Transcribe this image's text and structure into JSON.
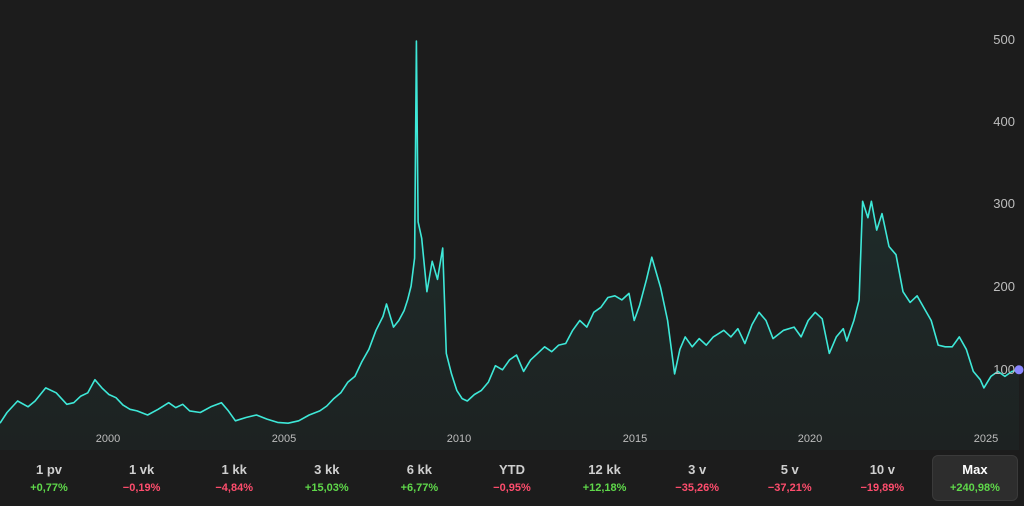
{
  "chart_data": {
    "type": "area",
    "title": "",
    "xlabel": "",
    "ylabel": "",
    "ylim": [
      0,
      520
    ],
    "xlim": [
      1997.0,
      2026.0
    ],
    "y_ticks": [
      "100",
      "200",
      "300",
      "400",
      "500"
    ],
    "x_ticks": [
      "2000",
      "2005",
      "2010",
      "2015",
      "2020",
      "2025"
    ],
    "grid": false,
    "line_color": "#3ee8d8",
    "marker_color": "#8a86ff",
    "series": [
      {
        "values": [
          [
            1997.0,
            35
          ],
          [
            1997.2,
            48
          ],
          [
            1997.5,
            62
          ],
          [
            1997.8,
            55
          ],
          [
            1998.0,
            62
          ],
          [
            1998.3,
            78
          ],
          [
            1998.6,
            72
          ],
          [
            1998.9,
            58
          ],
          [
            1999.1,
            60
          ],
          [
            1999.3,
            68
          ],
          [
            1999.5,
            72
          ],
          [
            1999.7,
            88
          ],
          [
            1999.9,
            78
          ],
          [
            2000.1,
            70
          ],
          [
            2000.3,
            66
          ],
          [
            2000.5,
            57
          ],
          [
            2000.7,
            52
          ],
          [
            2000.9,
            50
          ],
          [
            2001.2,
            45
          ],
          [
            2001.5,
            52
          ],
          [
            2001.8,
            60
          ],
          [
            2002.0,
            54
          ],
          [
            2002.2,
            58
          ],
          [
            2002.4,
            50
          ],
          [
            2002.7,
            48
          ],
          [
            2003.0,
            55
          ],
          [
            2003.3,
            60
          ],
          [
            2003.5,
            50
          ],
          [
            2003.7,
            38
          ],
          [
            2004.0,
            42
          ],
          [
            2004.3,
            45
          ],
          [
            2004.6,
            40
          ],
          [
            2004.9,
            36
          ],
          [
            2005.2,
            35
          ],
          [
            2005.5,
            38
          ],
          [
            2005.8,
            45
          ],
          [
            2006.1,
            50
          ],
          [
            2006.3,
            56
          ],
          [
            2006.5,
            65
          ],
          [
            2006.7,
            72
          ],
          [
            2006.9,
            85
          ],
          [
            2007.1,
            92
          ],
          [
            2007.3,
            110
          ],
          [
            2007.5,
            125
          ],
          [
            2007.7,
            148
          ],
          [
            2007.9,
            165
          ],
          [
            2008.0,
            180
          ],
          [
            2008.2,
            152
          ],
          [
            2008.35,
            160
          ],
          [
            2008.5,
            172
          ],
          [
            2008.6,
            185
          ],
          [
            2008.7,
            202
          ],
          [
            2008.8,
            236
          ],
          [
            2008.85,
            500
          ],
          [
            2008.9,
            280
          ],
          [
            2009.0,
            260
          ],
          [
            2009.15,
            195
          ],
          [
            2009.3,
            232
          ],
          [
            2009.45,
            210
          ],
          [
            2009.6,
            248
          ],
          [
            2009.7,
            120
          ],
          [
            2009.85,
            95
          ],
          [
            2010.0,
            75
          ],
          [
            2010.15,
            65
          ],
          [
            2010.3,
            62
          ],
          [
            2010.5,
            70
          ],
          [
            2010.7,
            75
          ],
          [
            2010.9,
            85
          ],
          [
            2011.1,
            105
          ],
          [
            2011.3,
            100
          ],
          [
            2011.5,
            112
          ],
          [
            2011.7,
            118
          ],
          [
            2011.9,
            98
          ],
          [
            2012.1,
            112
          ],
          [
            2012.3,
            120
          ],
          [
            2012.5,
            128
          ],
          [
            2012.7,
            122
          ],
          [
            2012.9,
            130
          ],
          [
            2013.1,
            132
          ],
          [
            2013.3,
            148
          ],
          [
            2013.5,
            160
          ],
          [
            2013.7,
            152
          ],
          [
            2013.9,
            170
          ],
          [
            2014.1,
            176
          ],
          [
            2014.3,
            188
          ],
          [
            2014.5,
            190
          ],
          [
            2014.7,
            185
          ],
          [
            2014.9,
            193
          ],
          [
            2015.05,
            160
          ],
          [
            2015.2,
            178
          ],
          [
            2015.4,
            210
          ],
          [
            2015.55,
            237
          ],
          [
            2015.8,
            200
          ],
          [
            2016.0,
            160
          ],
          [
            2016.2,
            95
          ],
          [
            2016.35,
            125
          ],
          [
            2016.5,
            140
          ],
          [
            2016.7,
            128
          ],
          [
            2016.9,
            138
          ],
          [
            2017.1,
            130
          ],
          [
            2017.3,
            140
          ],
          [
            2017.6,
            148
          ],
          [
            2017.8,
            140
          ],
          [
            2018.0,
            150
          ],
          [
            2018.2,
            132
          ],
          [
            2018.4,
            155
          ],
          [
            2018.6,
            170
          ],
          [
            2018.8,
            160
          ],
          [
            2019.0,
            138
          ],
          [
            2019.3,
            148
          ],
          [
            2019.6,
            152
          ],
          [
            2019.8,
            140
          ],
          [
            2020.0,
            160
          ],
          [
            2020.2,
            170
          ],
          [
            2020.4,
            162
          ],
          [
            2020.6,
            120
          ],
          [
            2020.8,
            140
          ],
          [
            2021.0,
            150
          ],
          [
            2021.1,
            135
          ],
          [
            2021.3,
            160
          ],
          [
            2021.45,
            185
          ],
          [
            2021.55,
            305
          ],
          [
            2021.7,
            285
          ],
          [
            2021.8,
            305
          ],
          [
            2021.95,
            270
          ],
          [
            2022.1,
            290
          ],
          [
            2022.3,
            250
          ],
          [
            2022.5,
            240
          ],
          [
            2022.7,
            195
          ],
          [
            2022.9,
            182
          ],
          [
            2023.1,
            190
          ],
          [
            2023.3,
            175
          ],
          [
            2023.5,
            160
          ],
          [
            2023.7,
            130
          ],
          [
            2023.9,
            128
          ],
          [
            2024.1,
            128
          ],
          [
            2024.3,
            140
          ],
          [
            2024.5,
            125
          ],
          [
            2024.7,
            98
          ],
          [
            2024.9,
            88
          ],
          [
            2025.0,
            78
          ],
          [
            2025.2,
            92
          ],
          [
            2025.4,
            98
          ],
          [
            2025.6,
            92
          ],
          [
            2025.8,
            98
          ],
          [
            2026.0,
            100
          ]
        ]
      }
    ]
  },
  "ranges": [
    {
      "label": "1 pv",
      "change": "+0,77%",
      "positive": true,
      "active": false
    },
    {
      "label": "1 vk",
      "change": "−0,19%",
      "positive": false,
      "active": false
    },
    {
      "label": "1 kk",
      "change": "−4,84%",
      "positive": false,
      "active": false
    },
    {
      "label": "3 kk",
      "change": "+15,03%",
      "positive": true,
      "active": false
    },
    {
      "label": "6 kk",
      "change": "+6,77%",
      "positive": true,
      "active": false
    },
    {
      "label": "YTD",
      "change": "−0,95%",
      "positive": false,
      "active": false
    },
    {
      "label": "12 kk",
      "change": "+12,18%",
      "positive": true,
      "active": false
    },
    {
      "label": "3 v",
      "change": "−35,26%",
      "positive": false,
      "active": false
    },
    {
      "label": "5 v",
      "change": "−37,21%",
      "positive": false,
      "active": false
    },
    {
      "label": "10 v",
      "change": "−19,89%",
      "positive": false,
      "active": false
    },
    {
      "label": "Max",
      "change": "+240,98%",
      "positive": true,
      "active": true
    }
  ],
  "colors": {
    "positive": "#5fd84a",
    "negative": "#ff4d6d"
  }
}
